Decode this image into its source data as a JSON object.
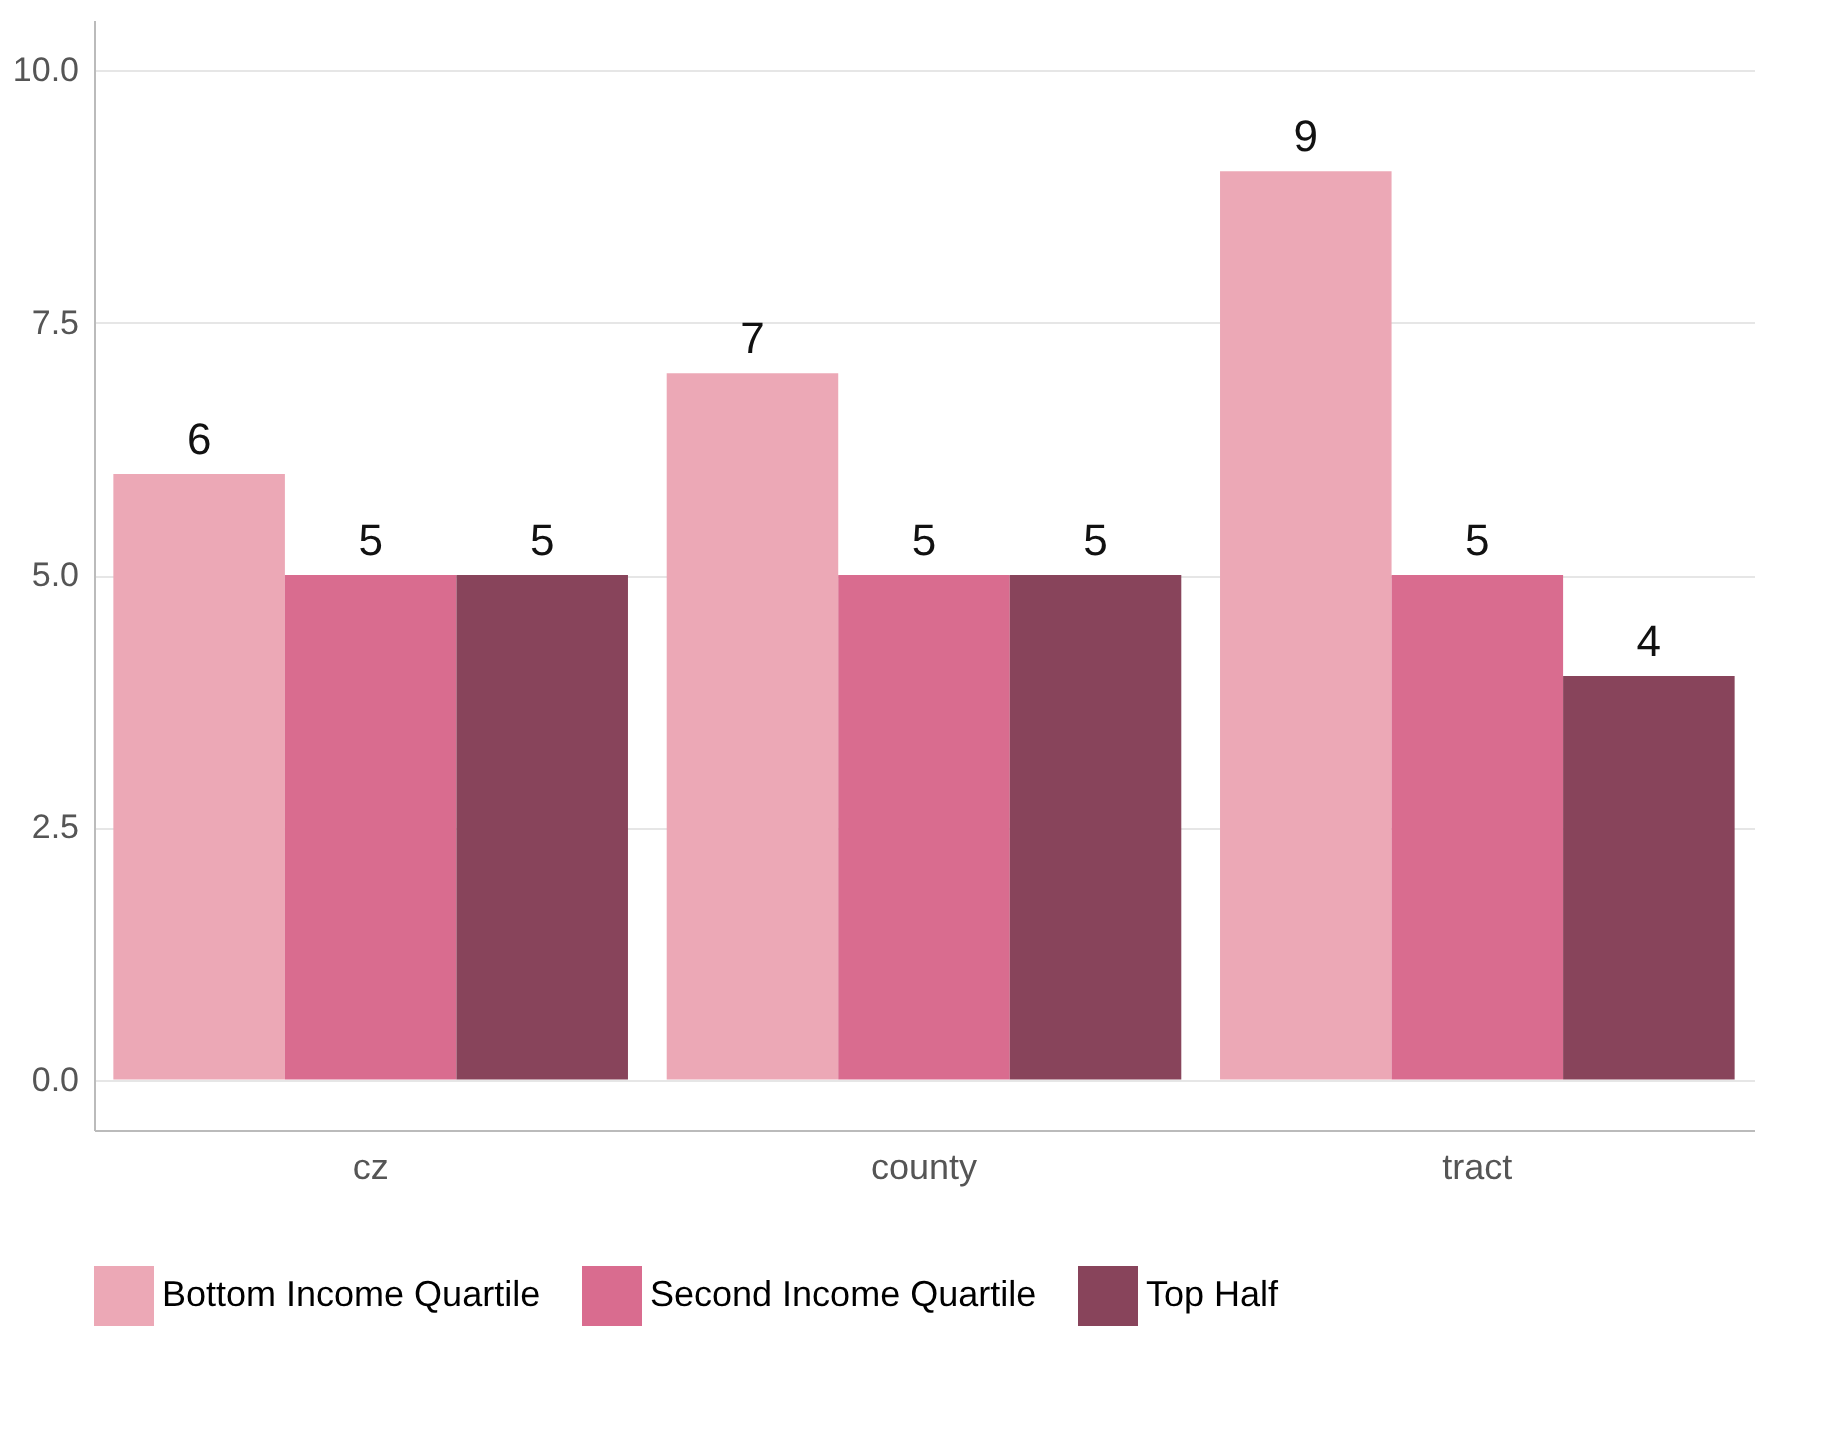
{
  "chart_data": {
    "type": "bar",
    "categories": [
      "cz",
      "county",
      "tract"
    ],
    "series": [
      {
        "name": "Bottom Income Quartile",
        "color": "#eca8b6",
        "values": [
          6,
          7,
          9
        ]
      },
      {
        "name": "Second Income Quartile",
        "color": "#d96c8f",
        "values": [
          5,
          5,
          5
        ]
      },
      {
        "name": "Top Half",
        "color": "#88445b",
        "values": [
          5,
          5,
          4
        ]
      }
    ],
    "ylim": [
      -0.5,
      10.5
    ],
    "yticks": [
      {
        "value": 0,
        "label": "0.0"
      },
      {
        "value": 2.5,
        "label": "2.5"
      },
      {
        "value": 5,
        "label": "5.0"
      },
      {
        "value": 7.5,
        "label": "7.5"
      },
      {
        "value": 10,
        "label": "10.0"
      }
    ],
    "grid": "y",
    "legend": "bottom",
    "data_labels": true
  }
}
